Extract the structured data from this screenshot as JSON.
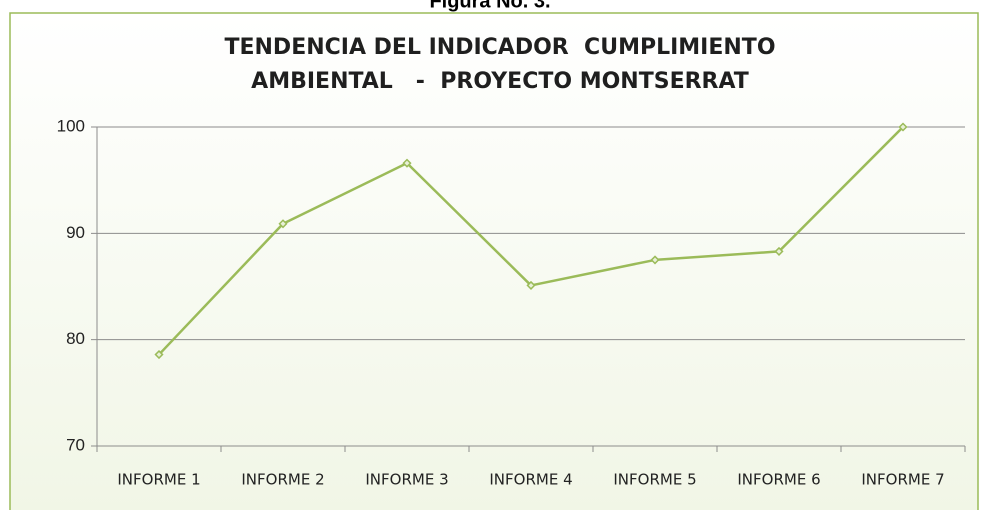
{
  "caption": "Figura No. 3.",
  "chart_data": {
    "type": "line",
    "title": [
      "TENDENCIA DEL INDICADOR  CUMPLIMIENTO",
      "AMBIENTAL   -  PROYECTO MONTSERRAT"
    ],
    "categories": [
      "INFORME 1",
      "INFORME 2",
      "INFORME 3",
      "INFORME 4",
      "INFORME 5",
      "INFORME 6",
      "INFORME 7"
    ],
    "series": [
      {
        "color": "#9bbb59",
        "values": [
          78.6,
          90.9,
          96.6,
          85.1,
          87.5,
          88.3,
          100
        ]
      }
    ],
    "ylim": [
      70,
      100
    ],
    "yticks": [
      70,
      80,
      90,
      100
    ],
    "grid": true
  }
}
